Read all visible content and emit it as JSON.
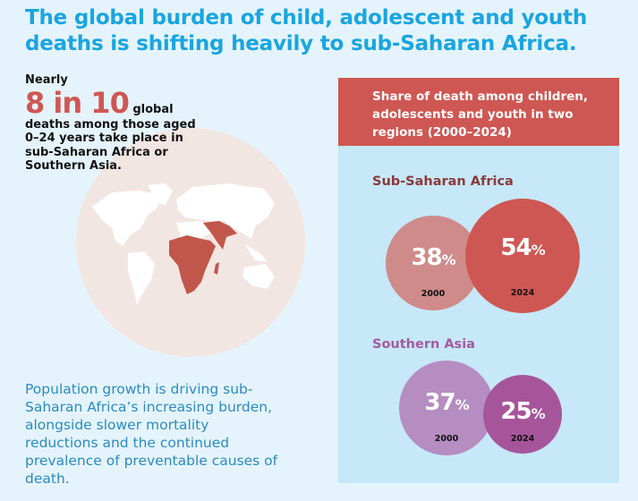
{
  "title": "The global burden of child, adolescent and youth deaths is shifting heavily to sub-Saharan Africa.",
  "stat": {
    "lead": "Nearly",
    "highlight": "8 in 10",
    "first_word": "global",
    "rest": "deaths among those aged 0–24 years take place in sub-Saharan Africa or Southern Asia."
  },
  "body": "Population growth is driving sub-Saharan Africa’s increasing burden, alongside slower mortality reductions and the continued prevalence of preventable causes of death.",
  "map": {
    "highlighted_regions": [
      "Sub-Saharan Africa",
      "Southern Asia"
    ],
    "highlight_color": "#c0574a"
  },
  "panel": {
    "title": "Share of death among children, adolescents and youth in two regions (2000–2024)",
    "regions": [
      {
        "name": "Sub-Saharan Africa",
        "color": "#8b3a3a",
        "values": [
          {
            "year": "2000",
            "value": "38",
            "unit": "%",
            "color": "#cf8b8a"
          },
          {
            "year": "2024",
            "value": "54",
            "unit": "%",
            "color": "#cf5753"
          }
        ]
      },
      {
        "name": "Southern Asia",
        "color": "#a55a9e",
        "values": [
          {
            "year": "2000",
            "value": "37",
            "unit": "%",
            "color": "#b58dc1"
          },
          {
            "year": "2024",
            "value": "25",
            "unit": "%",
            "color": "#a7559b"
          }
        ]
      }
    ]
  }
}
